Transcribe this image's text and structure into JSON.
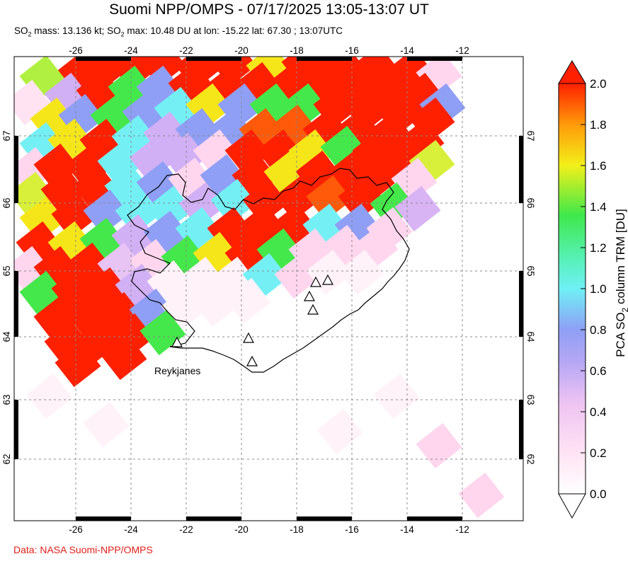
{
  "title": "Suomi NPP/OMPS - 07/17/2025 13:05-13:07 UT",
  "subtitle": {
    "mass_label": "SO",
    "mass_sub": "2",
    "mass_text": " mass: 13.136 kt; SO",
    "max_sub": "2",
    "max_text": " max: 10.48 DU at lon: -15.22 lat: 67.30 ; 13:07UTC"
  },
  "credit": "Data: NASA Suomi-NPP/OMPS",
  "map": {
    "lon_ticks": [
      "-26",
      "-24",
      "-22",
      "-20",
      "-18",
      "-16",
      "-14",
      "-12"
    ],
    "lat_ticks": [
      "67",
      "66",
      "65",
      "64",
      "63",
      "62"
    ],
    "place_label": "Reykjanes",
    "volcano_icon": "triangle-volcano-icon"
  },
  "colorbar": {
    "ticks": [
      "2.0",
      "1.8",
      "1.6",
      "1.4",
      "1.2",
      "1.0",
      "0.8",
      "0.6",
      "0.4",
      "0.2",
      "0.0"
    ],
    "label_pre": "PCA SO",
    "label_sub": "2",
    "label_post": " column TRM [DU]",
    "colors": [
      "#ffffff",
      "#ffd6ee",
      "#d9b0f5",
      "#9a9cf5",
      "#74f0f5",
      "#4ef06a",
      "#f5f01a",
      "#ff8c0a",
      "#ff2000"
    ]
  }
}
